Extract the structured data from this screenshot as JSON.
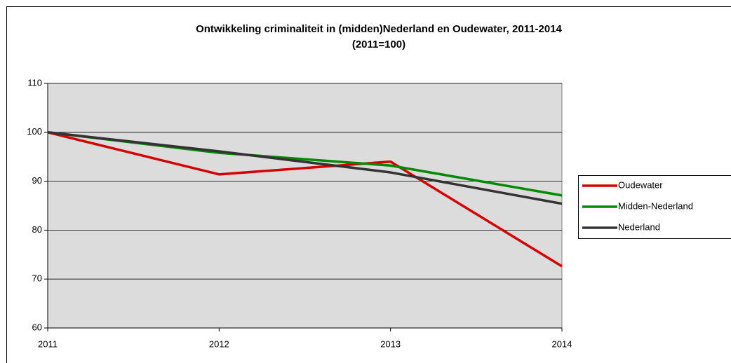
{
  "chart_data": {
    "type": "line",
    "title": "Ontwikkeling criminaliteit in (midden)Nederland en Oudewater, 2011-2014",
    "subtitle": "(2011=100)",
    "categories": [
      "2011",
      "2012",
      "2013",
      "2014"
    ],
    "series": [
      {
        "name": "Oudewater",
        "color": "#d40000",
        "values": [
          100,
          91.4,
          94.0,
          72.6
        ]
      },
      {
        "name": "Midden-Nederland",
        "color": "#008a00",
        "values": [
          100,
          95.8,
          93.2,
          87.1
        ]
      },
      {
        "name": "Nederland",
        "color": "#333333",
        "values": [
          100,
          96.1,
          91.8,
          85.4
        ]
      }
    ],
    "ylim": [
      60,
      110
    ],
    "yticks": [
      60,
      70,
      80,
      90,
      100,
      110
    ],
    "grid": true,
    "legend": "right"
  }
}
